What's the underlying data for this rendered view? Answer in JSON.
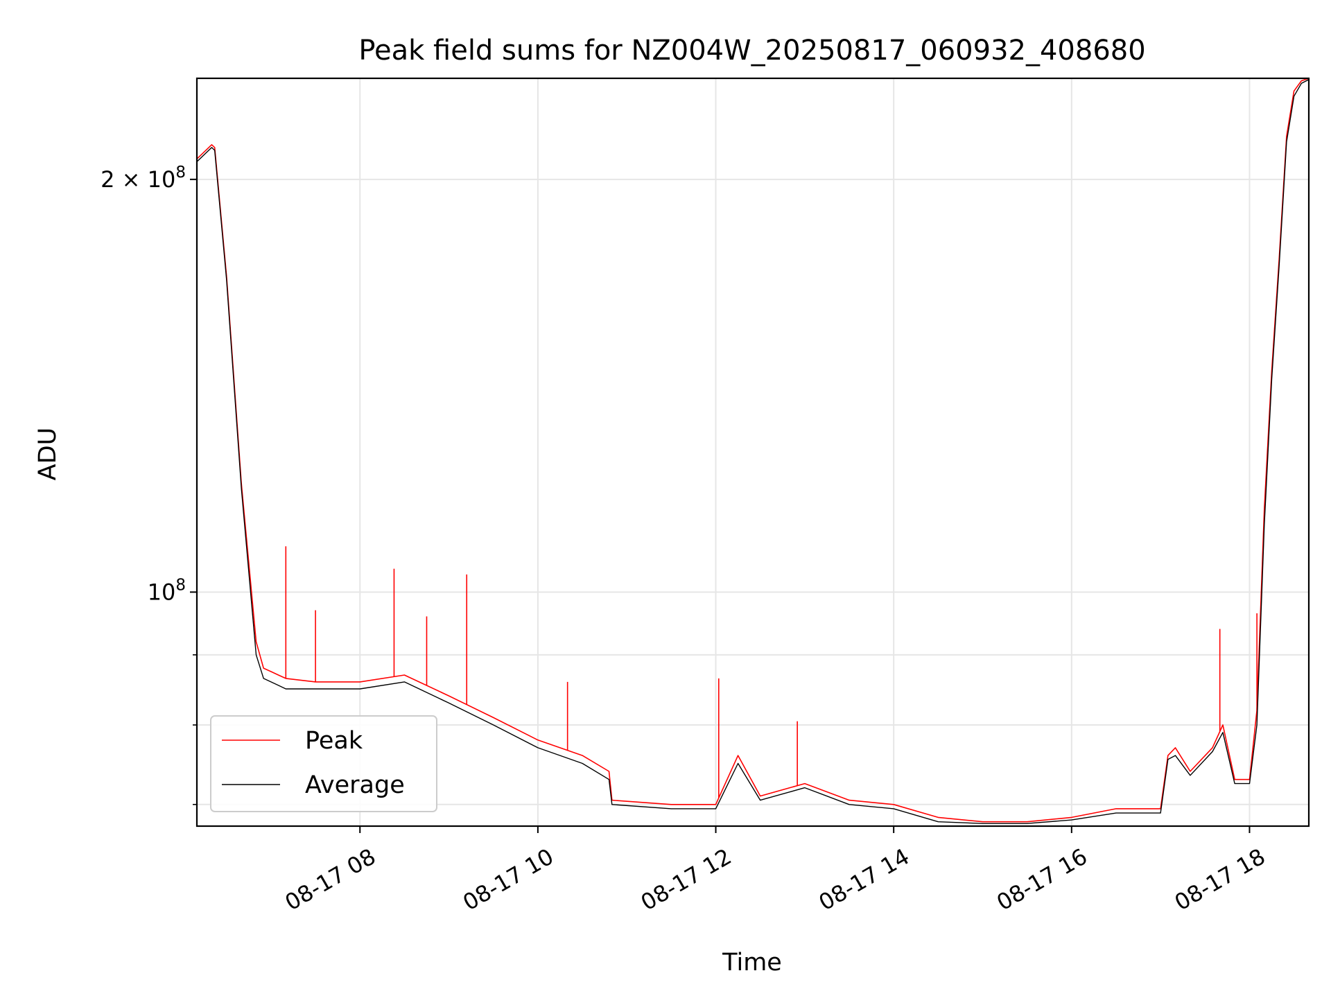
{
  "chart_data": {
    "type": "line",
    "title": "Peak field sums for NZ004W_20250817_060932_408680",
    "xlabel": "Time",
    "ylabel": "ADU",
    "y_scale": "log",
    "grid": true,
    "legend_placement": "lower-left",
    "xlim": [
      "2025-08-17 06:10",
      "2025-08-17 18:40"
    ],
    "ylim": [
      67500000,
      237000000
    ],
    "x_tick_labels": [
      "08-17 08",
      "08-17 10",
      "08-17 12",
      "08-17 14",
      "08-17 16",
      "08-17 18"
    ],
    "x_tick_values": [
      "2025-08-17 08:00",
      "2025-08-17 10:00",
      "2025-08-17 12:00",
      "2025-08-17 14:00",
      "2025-08-17 16:00",
      "2025-08-17 18:00"
    ],
    "y_tick_labels": [
      {
        "value": 200000000,
        "mantissa": "2",
        "op": " × ",
        "base": "10",
        "exp": "8"
      },
      {
        "value": 100000000,
        "mantissa": "",
        "op": "",
        "base": "10",
        "exp": "8"
      }
    ],
    "y_minor_ticks": [
      70000000,
      80000000,
      90000000
    ],
    "series": [
      {
        "name": "Peak",
        "color": "#ff0000",
        "x": [
          "2025-08-17 06:10",
          "2025-08-17 06:20",
          "2025-08-17 06:22",
          "2025-08-17 06:30",
          "2025-08-17 06:40",
          "2025-08-17 06:50",
          "2025-08-17 06:55",
          "2025-08-17 07:00",
          "2025-08-17 07:05",
          "2025-08-17 07:10",
          "2025-08-17 07:30",
          "2025-08-17 08:00",
          "2025-08-17 08:30",
          "2025-08-17 09:00",
          "2025-08-17 09:30",
          "2025-08-17 10:00",
          "2025-08-17 10:30",
          "2025-08-17 10:48",
          "2025-08-17 10:50",
          "2025-08-17 11:30",
          "2025-08-17 12:00",
          "2025-08-17 12:15",
          "2025-08-17 12:30",
          "2025-08-17 13:00",
          "2025-08-17 13:30",
          "2025-08-17 14:00",
          "2025-08-17 14:30",
          "2025-08-17 15:00",
          "2025-08-17 15:30",
          "2025-08-17 16:00",
          "2025-08-17 16:30",
          "2025-08-17 17:00",
          "2025-08-17 17:05",
          "2025-08-17 17:10",
          "2025-08-17 17:20",
          "2025-08-17 17:35",
          "2025-08-17 17:42",
          "2025-08-17 17:50",
          "2025-08-17 18:00",
          "2025-08-17 18:05",
          "2025-08-17 18:10",
          "2025-08-17 18:15",
          "2025-08-17 18:20",
          "2025-08-17 18:25",
          "2025-08-17 18:30",
          "2025-08-17 18:35",
          "2025-08-17 18:40"
        ],
        "y": [
          207000000,
          212000000,
          211000000,
          170000000,
          120000000,
          92000000,
          88000000,
          87500000,
          87000000,
          86500000,
          86000000,
          86000000,
          87000000,
          84000000,
          81000000,
          78000000,
          76000000,
          74000000,
          70500000,
          70000000,
          70000000,
          76000000,
          71000000,
          72500000,
          70500000,
          70000000,
          68500000,
          68000000,
          68000000,
          68500000,
          69500000,
          69500000,
          76000000,
          77000000,
          74000000,
          77000000,
          80000000,
          73000000,
          73000000,
          82000000,
          115000000,
          145000000,
          175000000,
          215000000,
          232000000,
          236000000,
          237000000
        ],
        "spikes": [
          {
            "x": "2025-08-17 07:10",
            "y": 108000000
          },
          {
            "x": "2025-08-17 07:30",
            "y": 97000000
          },
          {
            "x": "2025-08-17 08:23",
            "y": 104000000
          },
          {
            "x": "2025-08-17 08:45",
            "y": 96000000
          },
          {
            "x": "2025-08-17 09:12",
            "y": 103000000
          },
          {
            "x": "2025-08-17 10:20",
            "y": 86000000
          },
          {
            "x": "2025-08-17 12:02",
            "y": 86500000
          },
          {
            "x": "2025-08-17 12:55",
            "y": 80500000
          },
          {
            "x": "2025-08-17 17:40",
            "y": 94000000
          },
          {
            "x": "2025-08-17 18:05",
            "y": 96500000
          }
        ]
      },
      {
        "name": "Average",
        "color": "#000000",
        "x": [
          "2025-08-17 06:10",
          "2025-08-17 06:20",
          "2025-08-17 06:22",
          "2025-08-17 06:30",
          "2025-08-17 06:40",
          "2025-08-17 06:50",
          "2025-08-17 06:55",
          "2025-08-17 07:00",
          "2025-08-17 07:05",
          "2025-08-17 07:10",
          "2025-08-17 07:30",
          "2025-08-17 08:00",
          "2025-08-17 08:30",
          "2025-08-17 09:00",
          "2025-08-17 09:30",
          "2025-08-17 10:00",
          "2025-08-17 10:30",
          "2025-08-17 10:48",
          "2025-08-17 10:50",
          "2025-08-17 11:30",
          "2025-08-17 12:00",
          "2025-08-17 12:15",
          "2025-08-17 12:30",
          "2025-08-17 13:00",
          "2025-08-17 13:30",
          "2025-08-17 14:00",
          "2025-08-17 14:30",
          "2025-08-17 15:00",
          "2025-08-17 15:30",
          "2025-08-17 16:00",
          "2025-08-17 16:30",
          "2025-08-17 17:00",
          "2025-08-17 17:05",
          "2025-08-17 17:10",
          "2025-08-17 17:20",
          "2025-08-17 17:35",
          "2025-08-17 17:42",
          "2025-08-17 17:50",
          "2025-08-17 18:00",
          "2025-08-17 18:05",
          "2025-08-17 18:10",
          "2025-08-17 18:15",
          "2025-08-17 18:20",
          "2025-08-17 18:25",
          "2025-08-17 18:30",
          "2025-08-17 18:35",
          "2025-08-17 18:40"
        ],
        "y": [
          206000000,
          211000000,
          210000000,
          169000000,
          119000000,
          90000000,
          86500000,
          86000000,
          85500000,
          85000000,
          85000000,
          85000000,
          86000000,
          83000000,
          80000000,
          77000000,
          75000000,
          73000000,
          70000000,
          69500000,
          69500000,
          75000000,
          70500000,
          72000000,
          70000000,
          69500000,
          68000000,
          67800000,
          67800000,
          68200000,
          69000000,
          69000000,
          75500000,
          76000000,
          73500000,
          76500000,
          79000000,
          72500000,
          72500000,
          80000000,
          112000000,
          143000000,
          173000000,
          213000000,
          230000000,
          235000000,
          236500000
        ]
      }
    ]
  }
}
